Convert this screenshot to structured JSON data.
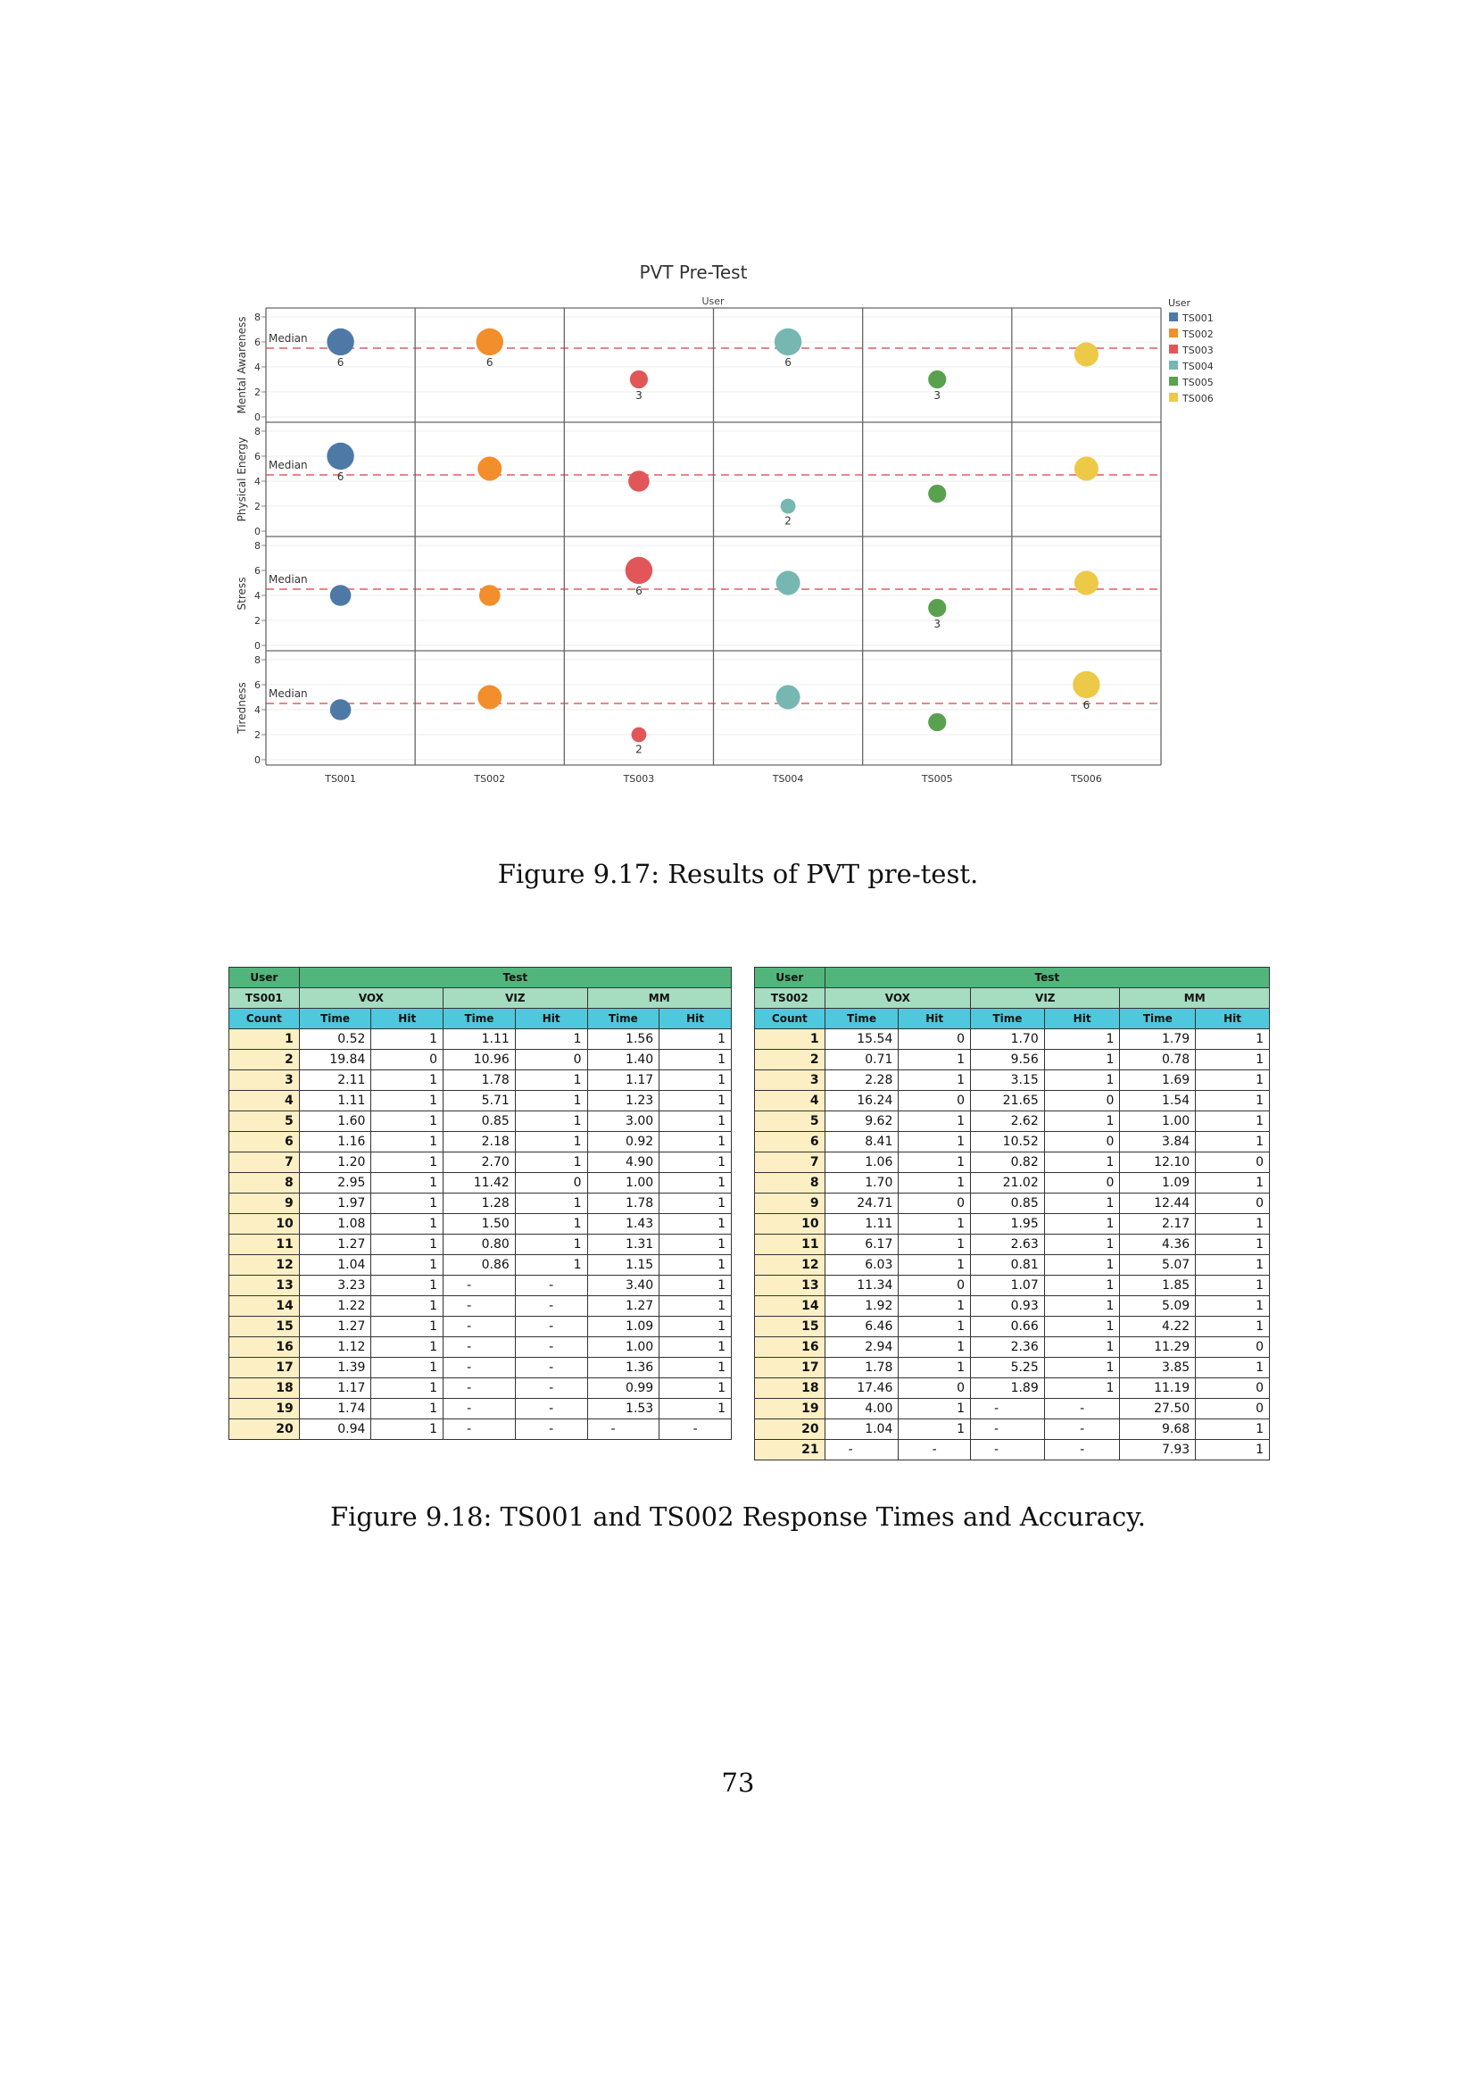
{
  "figure_9_17": {
    "caption": "Figure 9.17: Results of PVT pre-test.",
    "chart_data": {
      "type": "scatter",
      "title": "PVT Pre-Test",
      "column_header": "User",
      "legend": {
        "title": "User",
        "placement": "right",
        "items": [
          {
            "name": "TS001",
            "color": "#4e79a7"
          },
          {
            "name": "TS002",
            "color": "#f28e2b"
          },
          {
            "name": "TS003",
            "color": "#e15759"
          },
          {
            "name": "TS004",
            "color": "#76b7b2"
          },
          {
            "name": "TS005",
            "color": "#59a14f"
          },
          {
            "name": "TS006",
            "color": "#edc948"
          }
        ]
      },
      "categories": [
        "TS001",
        "TS002",
        "TS003",
        "TS004",
        "TS005",
        "TS006"
      ],
      "ylim": [
        0,
        8
      ],
      "yticks": [
        "0",
        "2",
        "4",
        "6",
        "8"
      ],
      "median_label": "Median",
      "rows": [
        {
          "label": "Mental Awareness",
          "median": 5.5,
          "values": [
            6,
            6,
            3,
            6,
            3,
            5
          ],
          "labels": [
            "6",
            "6",
            "3",
            "6",
            "3",
            ""
          ]
        },
        {
          "label": "Physical Energy",
          "median": 4.5,
          "values": [
            6,
            5,
            4,
            2,
            3,
            5
          ],
          "labels": [
            "6",
            "",
            "",
            "2",
            "",
            ""
          ]
        },
        {
          "label": "Stress",
          "median": 4.5,
          "values": [
            4,
            4,
            6,
            5,
            3,
            5
          ],
          "labels": [
            "",
            "",
            "6",
            "",
            "3",
            ""
          ]
        },
        {
          "label": "Tiredness",
          "median": 4.5,
          "values": [
            4,
            5,
            2,
            5,
            3,
            6
          ],
          "labels": [
            "",
            "",
            "2",
            "",
            "",
            "6"
          ]
        }
      ]
    }
  },
  "figure_9_18": {
    "caption": "Figure 9.18: TS001 and TS002 Response Times and Accuracy.",
    "tables": [
      {
        "user_label": "User",
        "test_label": "Test",
        "user": "TS001",
        "count_label": "Count",
        "groups": [
          "VOX",
          "VIZ",
          "MM"
        ],
        "sub_headers": [
          "Time",
          "Hit"
        ],
        "rows": [
          [
            "1",
            "0.52",
            "1",
            "1.11",
            "1",
            "1.56",
            "1"
          ],
          [
            "2",
            "19.84",
            "0",
            "10.96",
            "0",
            "1.40",
            "1"
          ],
          [
            "3",
            "2.11",
            "1",
            "1.78",
            "1",
            "1.17",
            "1"
          ],
          [
            "4",
            "1.11",
            "1",
            "5.71",
            "1",
            "1.23",
            "1"
          ],
          [
            "5",
            "1.60",
            "1",
            "0.85",
            "1",
            "3.00",
            "1"
          ],
          [
            "6",
            "1.16",
            "1",
            "2.18",
            "1",
            "0.92",
            "1"
          ],
          [
            "7",
            "1.20",
            "1",
            "2.70",
            "1",
            "4.90",
            "1"
          ],
          [
            "8",
            "2.95",
            "1",
            "11.42",
            "0",
            "1.00",
            "1"
          ],
          [
            "9",
            "1.97",
            "1",
            "1.28",
            "1",
            "1.78",
            "1"
          ],
          [
            "10",
            "1.08",
            "1",
            "1.50",
            "1",
            "1.43",
            "1"
          ],
          [
            "11",
            "1.27",
            "1",
            "0.80",
            "1",
            "1.31",
            "1"
          ],
          [
            "12",
            "1.04",
            "1",
            "0.86",
            "1",
            "1.15",
            "1"
          ],
          [
            "13",
            "3.23",
            "1",
            "-",
            "-",
            "3.40",
            "1"
          ],
          [
            "14",
            "1.22",
            "1",
            "-",
            "-",
            "1.27",
            "1"
          ],
          [
            "15",
            "1.27",
            "1",
            "-",
            "-",
            "1.09",
            "1"
          ],
          [
            "16",
            "1.12",
            "1",
            "-",
            "-",
            "1.00",
            "1"
          ],
          [
            "17",
            "1.39",
            "1",
            "-",
            "-",
            "1.36",
            "1"
          ],
          [
            "18",
            "1.17",
            "1",
            "-",
            "-",
            "0.99",
            "1"
          ],
          [
            "19",
            "1.74",
            "1",
            "-",
            "-",
            "1.53",
            "1"
          ],
          [
            "20",
            "0.94",
            "1",
            "-",
            "-",
            "-",
            "-"
          ]
        ]
      },
      {
        "user_label": "User",
        "test_label": "Test",
        "user": "TS002",
        "count_label": "Count",
        "groups": [
          "VOX",
          "VIZ",
          "MM"
        ],
        "sub_headers": [
          "Time",
          "Hit"
        ],
        "rows": [
          [
            "1",
            "15.54",
            "0",
            "1.70",
            "1",
            "1.79",
            "1"
          ],
          [
            "2",
            "0.71",
            "1",
            "9.56",
            "1",
            "0.78",
            "1"
          ],
          [
            "3",
            "2.28",
            "1",
            "3.15",
            "1",
            "1.69",
            "1"
          ],
          [
            "4",
            "16.24",
            "0",
            "21.65",
            "0",
            "1.54",
            "1"
          ],
          [
            "5",
            "9.62",
            "1",
            "2.62",
            "1",
            "1.00",
            "1"
          ],
          [
            "6",
            "8.41",
            "1",
            "10.52",
            "0",
            "3.84",
            "1"
          ],
          [
            "7",
            "1.06",
            "1",
            "0.82",
            "1",
            "12.10",
            "0"
          ],
          [
            "8",
            "1.70",
            "1",
            "21.02",
            "0",
            "1.09",
            "1"
          ],
          [
            "9",
            "24.71",
            "0",
            "0.85",
            "1",
            "12.44",
            "0"
          ],
          [
            "10",
            "1.11",
            "1",
            "1.95",
            "1",
            "2.17",
            "1"
          ],
          [
            "11",
            "6.17",
            "1",
            "2.63",
            "1",
            "4.36",
            "1"
          ],
          [
            "12",
            "6.03",
            "1",
            "0.81",
            "1",
            "5.07",
            "1"
          ],
          [
            "13",
            "11.34",
            "0",
            "1.07",
            "1",
            "1.85",
            "1"
          ],
          [
            "14",
            "1.92",
            "1",
            "0.93",
            "1",
            "5.09",
            "1"
          ],
          [
            "15",
            "6.46",
            "1",
            "0.66",
            "1",
            "4.22",
            "1"
          ],
          [
            "16",
            "2.94",
            "1",
            "2.36",
            "1",
            "11.29",
            "0"
          ],
          [
            "17",
            "1.78",
            "1",
            "5.25",
            "1",
            "3.85",
            "1"
          ],
          [
            "18",
            "17.46",
            "0",
            "1.89",
            "1",
            "11.19",
            "0"
          ],
          [
            "19",
            "4.00",
            "1",
            "-",
            "-",
            "27.50",
            "0"
          ],
          [
            "20",
            "1.04",
            "1",
            "-",
            "-",
            "9.68",
            "1"
          ],
          [
            "21",
            "-",
            "-",
            "-",
            "-",
            "7.93",
            "1"
          ]
        ]
      }
    ]
  },
  "page_number": "73"
}
